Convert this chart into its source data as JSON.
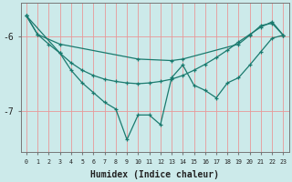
{
  "bg_color": "#cceaea",
  "line_color": "#1a7a6e",
  "grid_color": "#e89898",
  "axis_color": "#777777",
  "xlabel": "Humidex (Indice chaleur)",
  "xlim": [
    -0.5,
    23.5
  ],
  "ylim": [
    -7.55,
    -5.55
  ],
  "yticks": [
    -7,
    -6
  ],
  "xticks": [
    0,
    1,
    2,
    3,
    4,
    5,
    6,
    7,
    8,
    9,
    10,
    11,
    12,
    13,
    14,
    15,
    16,
    17,
    18,
    19,
    20,
    21,
    22,
    23
  ],
  "series": [
    {
      "x": [
        0,
        1,
        3,
        10,
        13,
        14,
        19,
        20,
        21,
        22,
        23
      ],
      "y": [
        -5.72,
        -5.97,
        -6.1,
        -6.3,
        -6.32,
        -6.3,
        -6.1,
        -5.98,
        -5.85,
        -5.82,
        -5.98
      ]
    },
    {
      "x": [
        0,
        1,
        2,
        3,
        4,
        5,
        6,
        7,
        8,
        9,
        10,
        11,
        12,
        13,
        14,
        15,
        16,
        17,
        18,
        19,
        20,
        21,
        22,
        23
      ],
      "y": [
        -5.72,
        -5.97,
        -6.1,
        -6.22,
        -6.35,
        -6.45,
        -6.52,
        -6.57,
        -6.6,
        -6.62,
        -6.63,
        -6.62,
        -6.6,
        -6.57,
        -6.52,
        -6.45,
        -6.37,
        -6.28,
        -6.18,
        -6.07,
        -5.97,
        -5.87,
        -5.8,
        -5.98
      ]
    },
    {
      "x": [
        0,
        3,
        4,
        5,
        6,
        7,
        8,
        9,
        10,
        11,
        12,
        13,
        14,
        15,
        16,
        17,
        18,
        19,
        20,
        21,
        22,
        23
      ],
      "y": [
        -5.72,
        -6.22,
        -6.45,
        -6.62,
        -6.75,
        -6.88,
        -6.97,
        -7.38,
        -7.05,
        -7.05,
        -7.18,
        -6.55,
        -6.38,
        -6.65,
        -6.72,
        -6.82,
        -6.62,
        -6.55,
        -6.38,
        -6.2,
        -6.02,
        -5.98
      ]
    }
  ]
}
